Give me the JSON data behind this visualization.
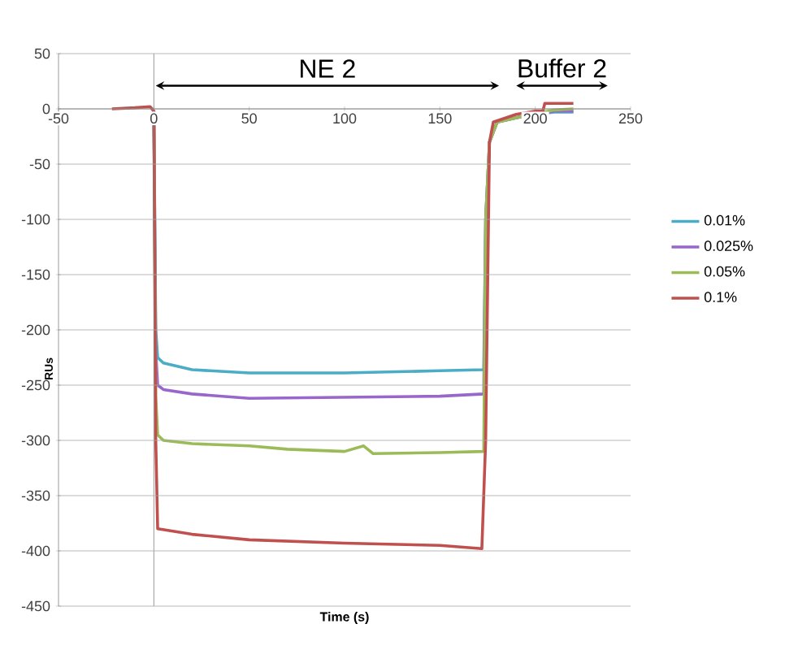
{
  "chart_data": {
    "type": "line",
    "xlabel": "Time (s)",
    "ylabel": "RUs",
    "xlim": [
      -50,
      250
    ],
    "ylim": [
      -450,
      50
    ],
    "xticks": [
      -50,
      0,
      50,
      100,
      150,
      200,
      250
    ],
    "yticks": [
      -450,
      -400,
      -350,
      -300,
      -250,
      -200,
      -150,
      -100,
      -50,
      0,
      50
    ],
    "grid": "y",
    "legend": "right",
    "marker": "none",
    "line_style": "solid",
    "annotations": [
      "NE 2",
      "Buffer 2"
    ],
    "series": [
      {
        "name": "0.01%",
        "color": "#4bacc6",
        "x": [
          0,
          1,
          2,
          5,
          20,
          50,
          100,
          150,
          173,
          174,
          176,
          180,
          190,
          200,
          210,
          220
        ],
        "values": [
          -2,
          -200,
          -225,
          -230,
          -236,
          -239,
          -239,
          -237,
          -236,
          -100,
          -30,
          -12,
          -8,
          -5,
          -3,
          -3
        ]
      },
      {
        "name": "0.025%",
        "color": "#9966cc",
        "x": [
          0,
          1,
          2,
          5,
          20,
          50,
          100,
          150,
          173,
          174,
          176,
          180,
          190,
          200,
          210,
          220
        ],
        "values": [
          -2,
          -220,
          -250,
          -254,
          -258,
          -262,
          -261,
          -260,
          -258,
          -100,
          -30,
          -12,
          -8,
          -5,
          -2,
          -2
        ]
      },
      {
        "name": "0.05%",
        "color": "#9bbb59",
        "x": [
          0,
          1,
          2,
          5,
          20,
          50,
          70,
          100,
          110,
          115,
          150,
          173,
          174,
          176,
          180,
          190,
          210,
          220
        ],
        "values": [
          -2,
          -260,
          -295,
          -300,
          -303,
          -305,
          -308,
          -310,
          -305,
          -312,
          -311,
          -310,
          -100,
          -30,
          -12,
          -8,
          -1,
          0
        ]
      },
      {
        "name": "0.1%",
        "color": "#c0504d",
        "x": [
          -22,
          -10,
          -2,
          0,
          1,
          2,
          20,
          50,
          100,
          150,
          172,
          174,
          176,
          178,
          190,
          200,
          204,
          205,
          220
        ],
        "values": [
          0,
          1,
          2,
          -2,
          -300,
          -380,
          -385,
          -390,
          -393,
          -395,
          -398,
          -300,
          -30,
          -12,
          -5,
          -2,
          -2,
          5,
          5
        ]
      }
    ]
  }
}
